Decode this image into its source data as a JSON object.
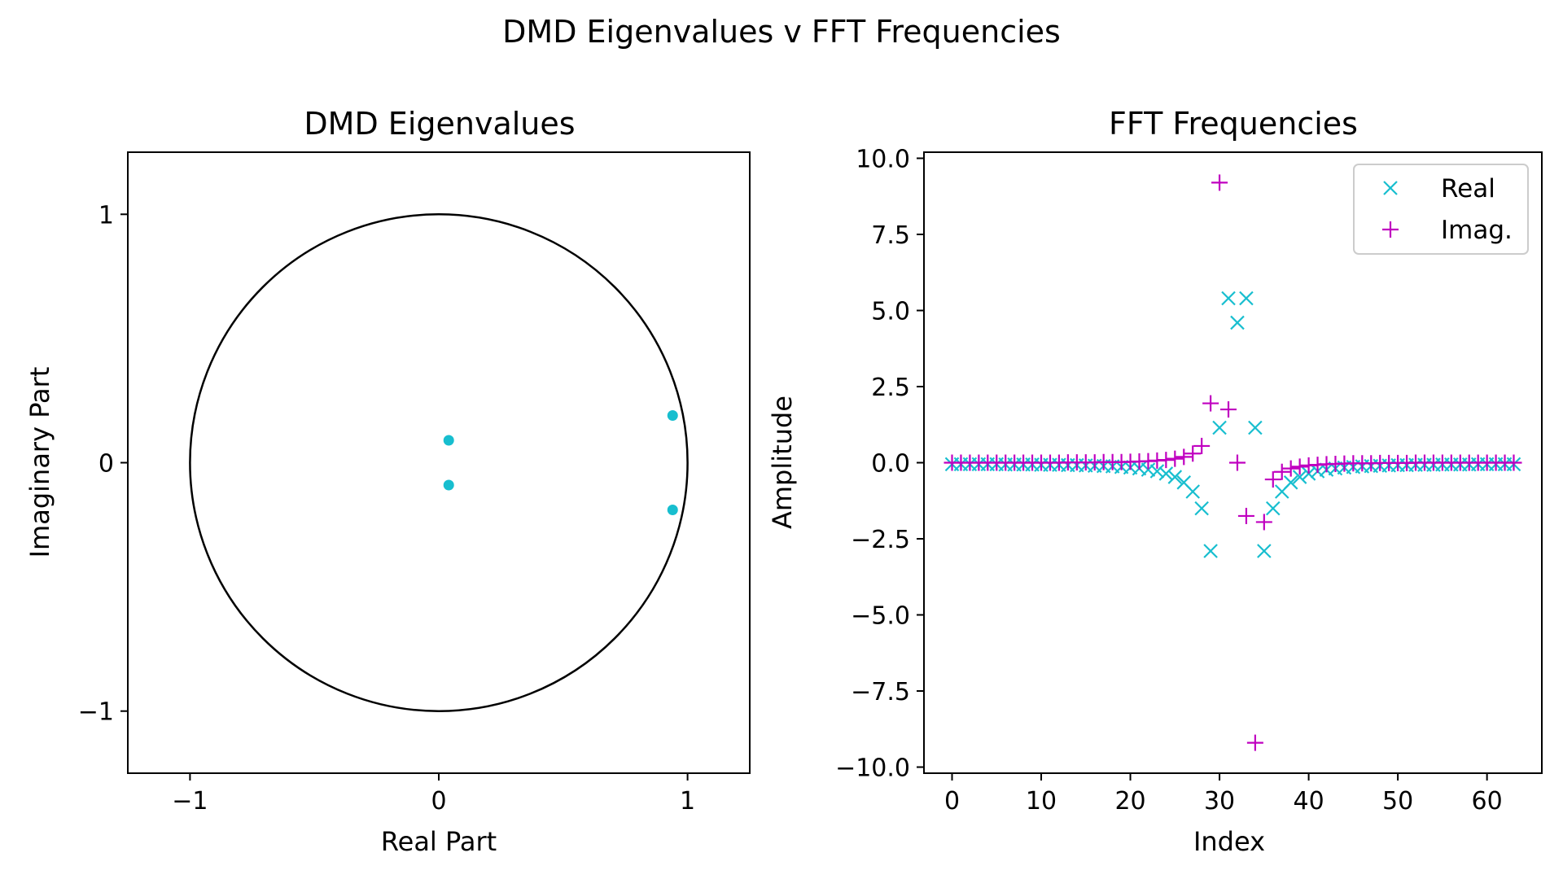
{
  "figure": {
    "suptitle": "DMD Eigenvalues v FFT Frequencies"
  },
  "chart_data": [
    {
      "type": "scatter",
      "title": "DMD Eigenvalues",
      "xlabel": "Real Part",
      "ylabel": "Imaginary Part",
      "xlim": [
        -1.25,
        1.25
      ],
      "ylim": [
        -1.25,
        1.25
      ],
      "xticks": [
        -1,
        0,
        1
      ],
      "yticks": [
        -1,
        0,
        1
      ],
      "xtick_labels": [
        "−1",
        "0",
        "1"
      ],
      "ytick_labels": [
        "−1",
        "0",
        "1"
      ],
      "unit_circle": true,
      "grid": false,
      "points": [
        {
          "x": 0.04,
          "y": 0.09
        },
        {
          "x": 0.04,
          "y": -0.09
        },
        {
          "x": 0.94,
          "y": 0.19
        },
        {
          "x": 0.94,
          "y": -0.19
        }
      ],
      "marker_color": "#17becf"
    },
    {
      "type": "scatter",
      "title": "FFT Frequencies",
      "xlabel": "Index",
      "ylabel": "Amplitude",
      "xlim": [
        -3.15,
        66.15
      ],
      "ylim": [
        -10.2,
        10.2
      ],
      "xticks": [
        0,
        10,
        20,
        30,
        40,
        50,
        60
      ],
      "yticks": [
        10,
        7.5,
        5,
        2.5,
        0,
        -2.5,
        -5,
        -7.5,
        -10
      ],
      "xtick_labels": [
        "0",
        "10",
        "20",
        "30",
        "40",
        "50",
        "60"
      ],
      "ytick_labels": [
        "10.0",
        "7.5",
        "5.0",
        "2.5",
        "0.0",
        "−2.5",
        "−5.0",
        "−7.5",
        "−10.0"
      ],
      "legend_position": "top-right",
      "grid": false,
      "series": [
        {
          "name": "Real",
          "marker": "x",
          "color": "#17becf",
          "x": [
            0,
            1,
            2,
            3,
            4,
            5,
            6,
            7,
            8,
            9,
            10,
            11,
            12,
            13,
            14,
            15,
            16,
            17,
            18,
            19,
            20,
            21,
            22,
            23,
            24,
            25,
            26,
            27,
            28,
            29,
            30,
            31,
            32,
            33,
            34,
            35,
            36,
            37,
            38,
            39,
            40,
            41,
            42,
            43,
            44,
            45,
            46,
            47,
            48,
            49,
            50,
            51,
            52,
            53,
            54,
            55,
            56,
            57,
            58,
            59,
            60,
            61,
            62,
            63
          ],
          "y": [
            -0.05,
            -0.05,
            -0.05,
            -0.05,
            -0.05,
            -0.05,
            -0.06,
            -0.06,
            -0.06,
            -0.06,
            -0.07,
            -0.07,
            -0.07,
            -0.08,
            -0.08,
            -0.09,
            -0.1,
            -0.11,
            -0.12,
            -0.14,
            -0.16,
            -0.19,
            -0.23,
            -0.28,
            -0.36,
            -0.47,
            -0.65,
            -0.95,
            -1.5,
            -2.9,
            1.15,
            5.4,
            4.6,
            5.4,
            1.15,
            -2.9,
            -1.5,
            -0.95,
            -0.65,
            -0.47,
            -0.36,
            -0.28,
            -0.23,
            -0.19,
            -0.16,
            -0.14,
            -0.12,
            -0.11,
            -0.1,
            -0.09,
            -0.08,
            -0.08,
            -0.07,
            -0.07,
            -0.07,
            -0.06,
            -0.06,
            -0.06,
            -0.06,
            -0.05,
            -0.05,
            -0.05,
            -0.05,
            -0.05
          ]
        },
        {
          "name": "Imag.",
          "marker": "+",
          "color": "#c000c0",
          "x": [
            0,
            1,
            2,
            3,
            4,
            5,
            6,
            7,
            8,
            9,
            10,
            11,
            12,
            13,
            14,
            15,
            16,
            17,
            18,
            19,
            20,
            21,
            22,
            23,
            24,
            25,
            26,
            27,
            28,
            29,
            30,
            31,
            32,
            33,
            34,
            35,
            36,
            37,
            38,
            39,
            40,
            41,
            42,
            43,
            44,
            45,
            46,
            47,
            48,
            49,
            50,
            51,
            52,
            53,
            54,
            55,
            56,
            57,
            58,
            59,
            60,
            61,
            62,
            63
          ],
          "y": [
            0,
            0,
            0,
            0,
            0,
            0,
            0,
            0,
            0,
            0,
            0,
            0,
            0,
            0.01,
            0.01,
            0.01,
            0.01,
            0.02,
            0.02,
            0.02,
            0.03,
            0.04,
            0.05,
            0.07,
            0.09,
            0.13,
            0.19,
            0.3,
            0.55,
            1.95,
            9.2,
            1.75,
            0,
            -1.75,
            -9.2,
            -1.95,
            -0.55,
            -0.3,
            -0.19,
            -0.13,
            -0.09,
            -0.07,
            -0.05,
            -0.04,
            -0.03,
            -0.02,
            -0.02,
            -0.02,
            -0.01,
            -0.01,
            -0.01,
            -0.01,
            0,
            0,
            0,
            0,
            0,
            0,
            0,
            0,
            0,
            0,
            0,
            0
          ]
        }
      ]
    }
  ]
}
